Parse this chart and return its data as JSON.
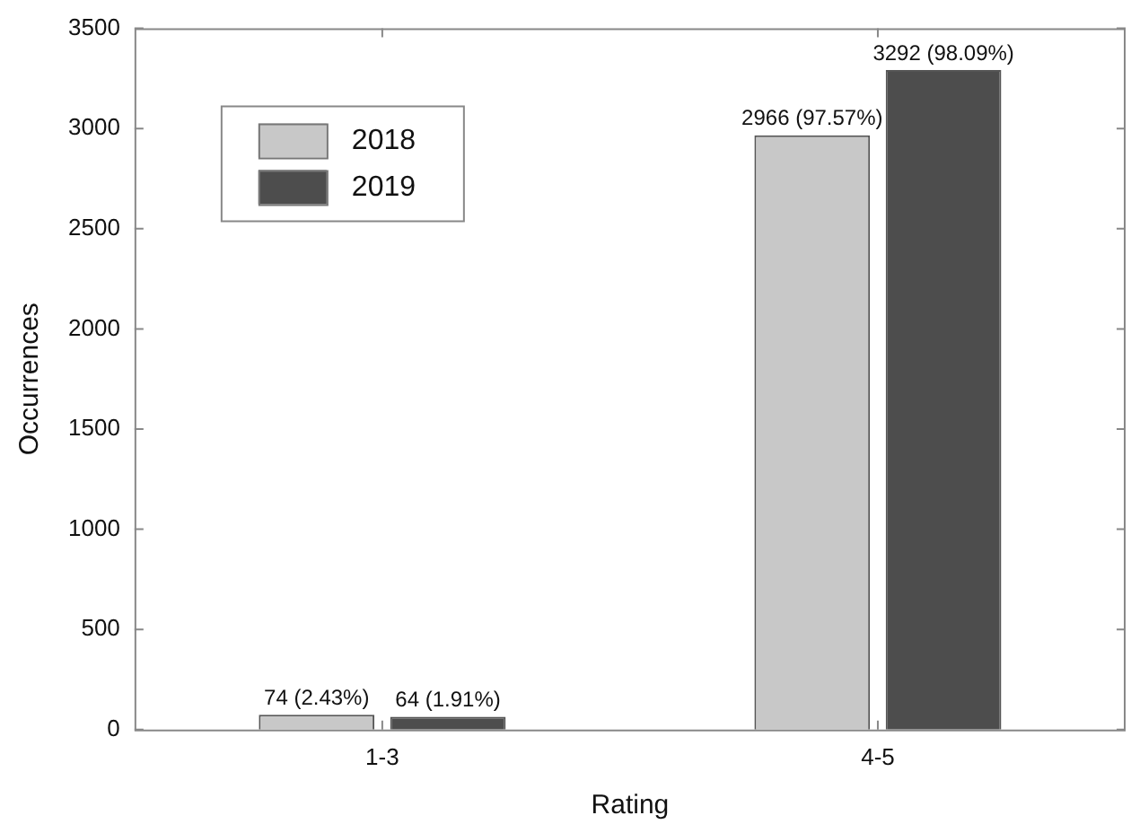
{
  "chart_data": {
    "type": "bar",
    "xlabel": "Rating",
    "ylabel": "Occurrences",
    "categories": [
      "1-3",
      "4-5"
    ],
    "series": [
      {
        "name": "2018",
        "color": "#c8c8c8",
        "values": [
          74,
          2966
        ],
        "value_labels": [
          "74 (2.43%)",
          "2966 (97.57%)"
        ]
      },
      {
        "name": "2019",
        "color": "#4d4d4d",
        "values": [
          64,
          3292
        ],
        "value_labels": [
          "64 (1.91%)",
          "3292 (98.09%)"
        ]
      }
    ],
    "ylim": [
      0,
      3500
    ],
    "yticks": [
      0,
      500,
      1000,
      1500,
      2000,
      2500,
      3000,
      3500
    ],
    "grid": false,
    "legend": "top left"
  }
}
